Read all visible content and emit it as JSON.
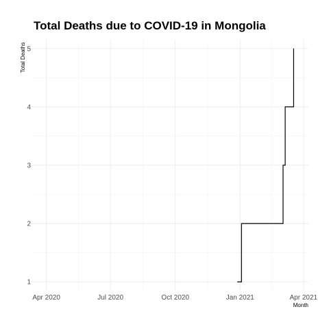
{
  "chart_data": {
    "type": "line",
    "title": "Total Deaths due to COVID-19 in Mongolia",
    "xlabel": "Month",
    "ylabel": "Total Deaths",
    "x_tick_labels": [
      {
        "date": "2020-04-01",
        "label": "Apr 2020"
      },
      {
        "date": "2020-07-01",
        "label": "Jul 2020"
      },
      {
        "date": "2020-10-01",
        "label": "Oct 2020"
      },
      {
        "date": "2021-01-01",
        "label": "Jan 2021"
      },
      {
        "date": "2021-04-01",
        "label": "Apr 2021"
      }
    ],
    "y_tick_labels": [
      "1",
      "2",
      "3",
      "4",
      "5"
    ],
    "xlim": [
      "2020-03-10",
      "2021-04-08"
    ],
    "ylim": [
      0.85,
      5.15
    ],
    "grid": true,
    "series": [
      {
        "color": "#000000",
        "x": [
          "2020-12-28",
          "2021-01-02",
          "2021-01-03",
          "2021-03-02",
          "2021-03-03",
          "2021-03-06",
          "2021-03-16",
          "2021-03-18"
        ],
        "y": [
          1,
          1,
          2,
          2,
          3,
          4,
          4,
          5
        ]
      }
    ]
  }
}
